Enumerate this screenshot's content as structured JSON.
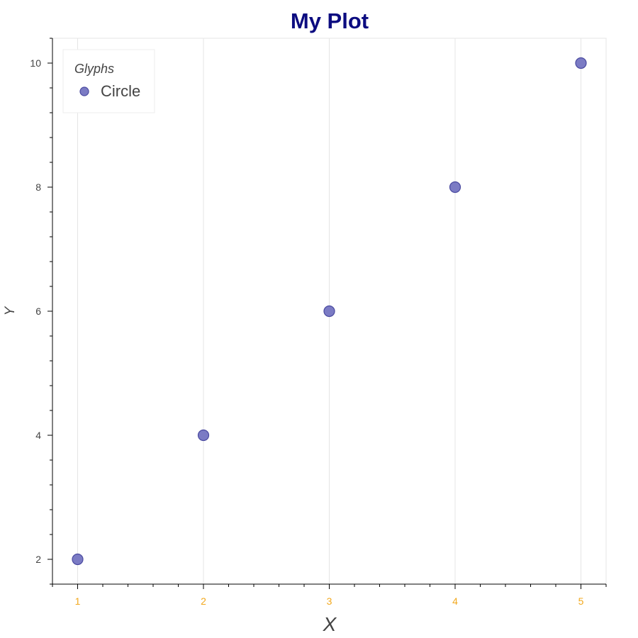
{
  "chart_data": {
    "type": "scatter",
    "title": "My Plot",
    "xlabel": "X",
    "ylabel": "Y",
    "xlim": [
      0.8,
      5.2
    ],
    "ylim": [
      1.6,
      10.4
    ],
    "x_ticks": [
      "1",
      "2",
      "3",
      "4",
      "5"
    ],
    "y_ticks": [
      "2",
      "4",
      "6",
      "8",
      "10"
    ],
    "grid": "vertical lines only",
    "legend_position": "top-left",
    "legend_title": "Glyphs",
    "series": [
      {
        "name": "Circle",
        "x": [
          1,
          2,
          3,
          4,
          5
        ],
        "y": [
          2,
          4,
          6,
          8,
          10
        ]
      }
    ],
    "colors": {
      "title": "#0c0c80",
      "x_tick_labels": "#f2a81d",
      "y_tick_labels": "#444444",
      "marker_fill": "#7b7bc4",
      "marker_stroke": "#4a4aa0",
      "grid": "#e5e5e5",
      "axis": "#000000"
    }
  }
}
